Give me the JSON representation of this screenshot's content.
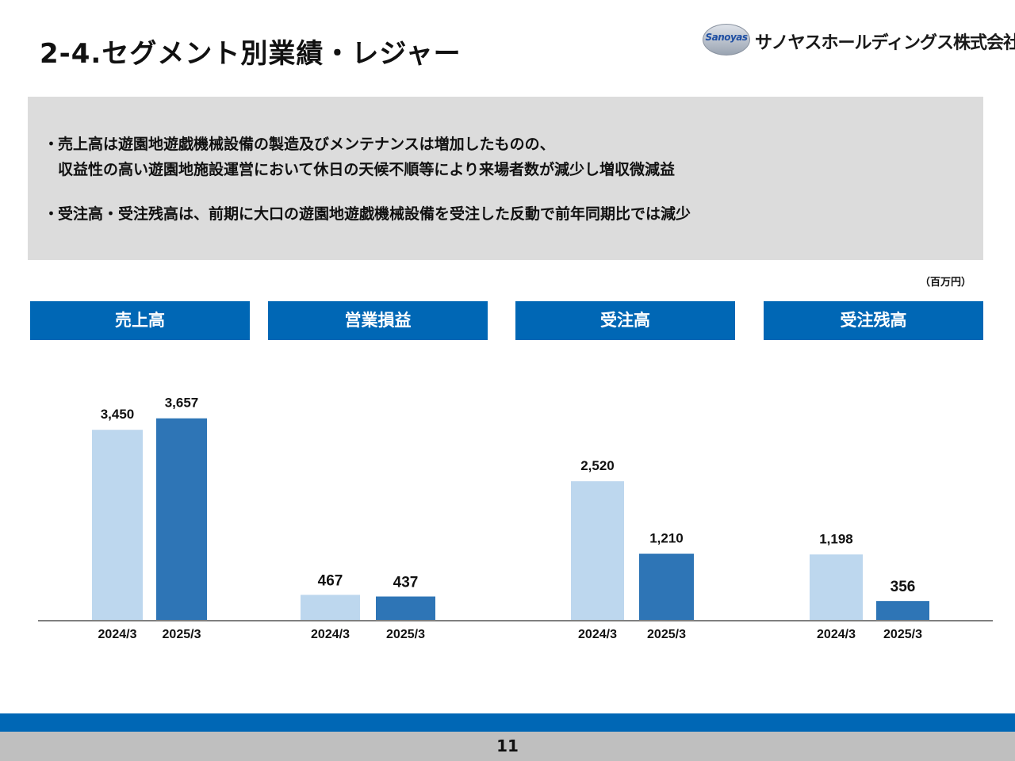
{
  "title": "2-4.セグメント別業績・レジャー",
  "logo": {
    "wordmark": "Sanoyas",
    "company_name": "サノヤスホールディングス株式会社",
    "colors": {
      "oval": "#9aa4b2",
      "wordmark": "#1f4fa3"
    }
  },
  "summary": {
    "bullets": [
      {
        "mark": "・",
        "line1": "売上高は遊園地遊戯機械設備の製造及びメンテナンスは増加したものの、",
        "line2": "収益性の高い遊園地施設運営において休日の天候不順等により来場者数が減少し増収微減益"
      },
      {
        "mark": "・",
        "line1": "受注高・受注残高は、前期に大口の遊園地遊戯機械設備を受注した反動で前年同期比では減少",
        "line2": ""
      }
    ]
  },
  "unit_label": "（百万円）",
  "colors": {
    "header": "#0067b5",
    "bar_prev": "#bdd7ee",
    "bar_curr": "#2e75b6",
    "axis": "#7f7f7f"
  },
  "segments": [
    {
      "label": "売上高"
    },
    {
      "label": "営業損益"
    },
    {
      "label": "受注高"
    },
    {
      "label": "受注残高"
    }
  ],
  "chart_data": [
    {
      "type": "bar",
      "title": "売上高",
      "categories": [
        "2024/3",
        "2025/3"
      ],
      "values": [
        3450,
        3657
      ],
      "value_labels": [
        "3,450",
        "3,657"
      ]
    },
    {
      "type": "bar",
      "title": "営業損益",
      "categories": [
        "2024/3",
        "2025/3"
      ],
      "values": [
        467,
        437
      ],
      "value_labels": [
        "467",
        "437"
      ]
    },
    {
      "type": "bar",
      "title": "受注高",
      "categories": [
        "2024/3",
        "2025/3"
      ],
      "values": [
        2520,
        1210
      ],
      "value_labels": [
        "2,520",
        "1,210"
      ]
    },
    {
      "type": "bar",
      "title": "受注残高",
      "categories": [
        "2024/3",
        "2025/3"
      ],
      "values": [
        1198,
        356
      ],
      "value_labels": [
        "1,198",
        "356"
      ]
    }
  ],
  "footer": {
    "page_number": "11"
  }
}
